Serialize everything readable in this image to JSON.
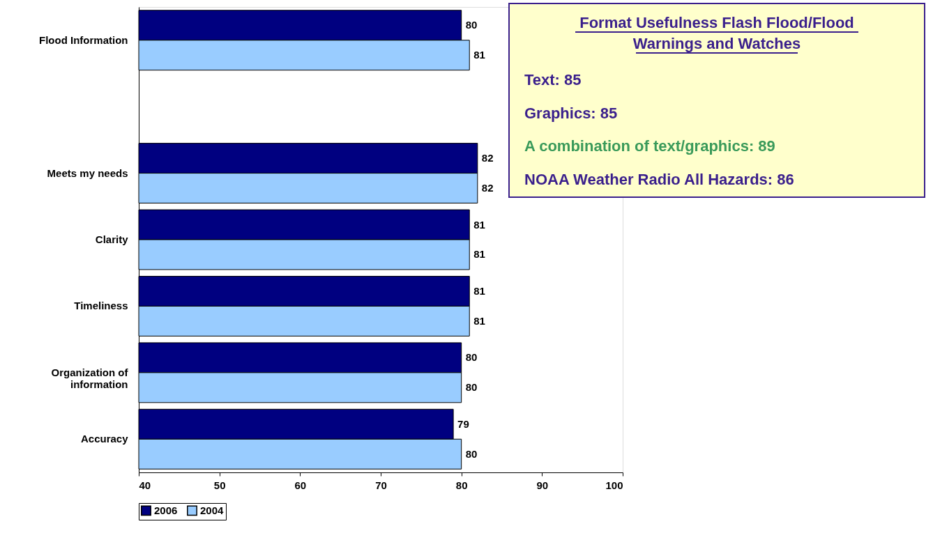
{
  "chart_data": {
    "type": "bar",
    "orientation": "horizontal",
    "categories": [
      "Flood Information",
      null,
      "Meets my needs",
      "Clarity",
      "Timeliness",
      "Organization of information",
      "Accuracy"
    ],
    "series": [
      {
        "name": "2006",
        "color": "#000080",
        "values": [
          80,
          null,
          82,
          81,
          81,
          80,
          79
        ]
      },
      {
        "name": "2004",
        "color": "#99ccff",
        "values": [
          81,
          null,
          82,
          81,
          81,
          80,
          80
        ]
      }
    ],
    "xlim": [
      40,
      100
    ],
    "xticks": [
      40,
      50,
      60,
      70,
      80,
      90,
      100
    ],
    "data_labels": true,
    "legend": "bottom",
    "grid": false,
    "annotations": [
      "Format Usefulness Flash Flood/Flood Warnings and Watches",
      "Text: 85",
      "Graphics: 85",
      "A combination of text/graphics: 89",
      "NOAA Weather Radio All Hazards: 86"
    ]
  }
}
